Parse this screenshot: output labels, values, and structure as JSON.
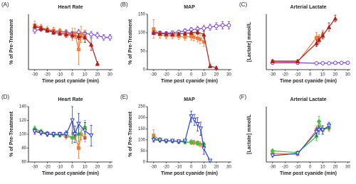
{
  "chart_data": [
    {
      "type": "line",
      "label": "(A)",
      "title": "Heart Rate",
      "xlabel": "Time post cyanide (min)",
      "ylabel": "% of Pre-Treatment",
      "xlim": [
        -35,
        32
      ],
      "xticks": [
        -30,
        -20,
        -10,
        0,
        10,
        20,
        30
      ],
      "ylim": [
        60,
        115
      ],
      "series": [
        {
          "color": "#7b3fd6",
          "marker": "circle",
          "x": [
            -30,
            -25,
            -20,
            -15,
            -10,
            -5,
            0,
            5,
            10,
            15,
            20,
            25,
            30
          ],
          "values": [
            99,
            100,
            99,
            98,
            98,
            97,
            96,
            97,
            96,
            95,
            94,
            92,
            92
          ],
          "errors": [
            3,
            2,
            2,
            2,
            2,
            2,
            2,
            3,
            3,
            3,
            3,
            3,
            3
          ]
        },
        {
          "color": "#f07a3a",
          "marker": "square",
          "x": [
            -30,
            -25,
            -20,
            -15,
            -10,
            -5,
            0,
            2,
            5,
            7,
            10
          ],
          "values": [
            104,
            102,
            100,
            99,
            98,
            96,
            95,
            96,
            80,
            95,
            93
          ],
          "errors": [
            4,
            3,
            3,
            3,
            3,
            4,
            6,
            5,
            15,
            8,
            6
          ]
        },
        {
          "color": "#b0201c",
          "marker": "triangle",
          "x": [
            -30,
            -25,
            -20,
            -15,
            -10,
            -5,
            0,
            5,
            10,
            15,
            20
          ],
          "values": [
            103,
            101,
            99,
            97,
            96,
            95,
            94,
            93,
            92,
            85,
            66
          ],
          "errors": [
            2,
            2,
            2,
            2,
            2,
            3,
            3,
            3,
            5,
            6,
            2
          ]
        }
      ]
    },
    {
      "type": "line",
      "label": "(B)",
      "title": "MAP",
      "xlabel": "Time post cyanide (min)",
      "ylabel": "% of Pre-Treatment",
      "xlim": [
        -35,
        32
      ],
      "xticks": [
        -30,
        -20,
        -10,
        0,
        10,
        20,
        30
      ],
      "ylim": [
        0,
        150
      ],
      "yticks": [
        0,
        50,
        100,
        150
      ],
      "series": [
        {
          "color": "#7b3fd6",
          "marker": "circle",
          "x": [
            -30,
            -25,
            -20,
            -15,
            -10,
            -5,
            0,
            5,
            10,
            15,
            20,
            25,
            30
          ],
          "values": [
            100,
            100,
            98,
            100,
            102,
            105,
            108,
            110,
            112,
            115,
            118,
            120,
            120
          ],
          "errors": [
            5,
            5,
            5,
            5,
            5,
            6,
            6,
            7,
            8,
            8,
            9,
            10,
            10
          ]
        },
        {
          "color": "#f07a3a",
          "marker": "square",
          "x": [
            -30,
            -25,
            -20,
            -15,
            -10,
            -5,
            0,
            2,
            5,
            7,
            10
          ],
          "values": [
            110,
            95,
            92,
            92,
            90,
            88,
            90,
            88,
            85,
            82,
            75
          ],
          "errors": [
            25,
            10,
            8,
            8,
            8,
            8,
            10,
            10,
            10,
            12,
            12
          ]
        },
        {
          "color": "#b0201c",
          "marker": "triangle",
          "x": [
            -30,
            -25,
            -20,
            -15,
            -10,
            -5,
            0,
            5,
            10,
            15,
            20
          ],
          "values": [
            100,
            98,
            97,
            96,
            97,
            98,
            100,
            102,
            95,
            10,
            5
          ],
          "errors": [
            5,
            4,
            4,
            4,
            4,
            4,
            5,
            6,
            10,
            5,
            3
          ]
        }
      ]
    },
    {
      "type": "line",
      "label": "(C)",
      "title": "Arterial Lactate",
      "xlabel": "Time post cyanide (min)",
      "ylabel": "[Lactate] mmol/L",
      "xlim": [
        -35,
        32
      ],
      "xticks": [
        -30,
        -20,
        -10,
        0,
        10,
        20,
        30
      ],
      "ylim": [
        0,
        13
      ],
      "series": [
        {
          "color": "#7b3fd6",
          "marker": "circle",
          "x": [
            -30,
            -10,
            5,
            10,
            15,
            20,
            25,
            30
          ],
          "values": [
            1.6,
            1.6,
            1.5,
            1.5,
            1.5,
            1.6,
            1.6,
            1.6
          ],
          "errors": [
            0.2,
            0.2,
            0.2,
            0.2,
            0.2,
            0.2,
            0.2,
            0.2
          ]
        },
        {
          "color": "#f07a3a",
          "marker": "square",
          "x": [
            -30,
            -10,
            5,
            7,
            10
          ],
          "values": [
            1.9,
            1.8,
            7.5,
            7.2,
            8.2
          ],
          "errors": [
            0.3,
            0.3,
            1.2,
            1,
            1
          ]
        },
        {
          "color": "#b0201c",
          "marker": "triangle",
          "x": [
            -30,
            -10,
            5,
            7,
            10,
            15,
            20
          ],
          "values": [
            2,
            2,
            6.2,
            7,
            8,
            10,
            12
          ],
          "errors": [
            0.3,
            0.3,
            0.8,
            0.8,
            0.8,
            1,
            0.8
          ]
        }
      ]
    },
    {
      "type": "line",
      "label": "(D)",
      "title": "Heart Rate",
      "xlabel": "Time post cyanide (min)",
      "ylabel": "% of Pre-Treatment",
      "xlim": [
        -35,
        32
      ],
      "xticks": [
        -30,
        -20,
        -10,
        0,
        10,
        20,
        30
      ],
      "ylim": [
        60,
        140
      ],
      "yticks": [
        60,
        80,
        100,
        120,
        140
      ],
      "series": [
        {
          "color": "#f07a3a",
          "marker": "square",
          "x": [
            -30,
            -25,
            -20,
            -15,
            -10,
            -5,
            0,
            2,
            5,
            7,
            10
          ],
          "values": [
            105,
            103,
            101,
            100,
            99,
            97,
            95,
            98,
            80,
            100,
            95
          ],
          "errors": [
            4,
            3,
            3,
            3,
            3,
            4,
            6,
            5,
            15,
            8,
            6
          ]
        },
        {
          "color": "#3cc23c",
          "marker": "diamond",
          "x": [
            -30,
            -25,
            -20,
            -15,
            -10,
            -5,
            0,
            5,
            10
          ],
          "values": [
            108,
            104,
            101,
            99,
            99,
            100,
            95,
            100,
            110
          ],
          "errors": [
            4,
            3,
            3,
            3,
            3,
            4,
            8,
            10,
            10
          ]
        },
        {
          "color": "#2a3fd0",
          "marker": "tri-down",
          "x": [
            -30,
            -25,
            -20,
            -15,
            -10,
            -5,
            0,
            2,
            5,
            10,
            15
          ],
          "values": [
            104,
            102,
            100,
            100,
            100,
            100,
            120,
            100,
            115,
            105,
            98
          ],
          "errors": [
            4,
            3,
            3,
            3,
            3,
            5,
            20,
            12,
            15,
            12,
            15
          ]
        }
      ]
    },
    {
      "type": "line",
      "label": "(E)",
      "title": "MAP",
      "xlabel": "Time post cyanide (min)",
      "ylabel": "% of Pre-Treatment",
      "xlim": [
        -35,
        32
      ],
      "xticks": [
        -30,
        -20,
        -10,
        0,
        10,
        20,
        30
      ],
      "ylim": [
        0,
        250
      ],
      "yticks": [
        0,
        50,
        100,
        150,
        200,
        250
      ],
      "series": [
        {
          "color": "#f07a3a",
          "marker": "square",
          "x": [
            -30,
            -25,
            -20,
            -15,
            -10,
            -5,
            0,
            2,
            5,
            7,
            10
          ],
          "values": [
            120,
            100,
            95,
            95,
            92,
            90,
            90,
            88,
            85,
            80,
            72
          ],
          "errors": [
            25,
            10,
            8,
            8,
            8,
            8,
            10,
            10,
            10,
            12,
            12
          ]
        },
        {
          "color": "#3cc23c",
          "marker": "diamond",
          "x": [
            -30,
            -25,
            -20,
            -15,
            -10,
            -5,
            0,
            5,
            10
          ],
          "values": [
            105,
            100,
            95,
            95,
            92,
            90,
            88,
            85,
            80
          ],
          "errors": [
            10,
            8,
            8,
            8,
            8,
            8,
            8,
            10,
            10
          ]
        },
        {
          "color": "#2a3fd0",
          "marker": "tri-down",
          "x": [
            -30,
            -25,
            -20,
            -15,
            -10,
            -5,
            0,
            2.5,
            5,
            7.5,
            10,
            15
          ],
          "values": [
            100,
            98,
            95,
            95,
            92,
            95,
            205,
            190,
            170,
            150,
            60,
            5
          ],
          "errors": [
            10,
            8,
            8,
            8,
            8,
            8,
            25,
            25,
            30,
            30,
            25,
            5
          ]
        }
      ]
    },
    {
      "type": "line",
      "label": "(F)",
      "title": "Arterial Lactate",
      "xlabel": "Time post cyanide (min)",
      "ylabel": "[Lactate] mmol/L",
      "xlim": [
        -35,
        32
      ],
      "xticks": [
        -30,
        -20,
        -10,
        0,
        10,
        20,
        30
      ],
      "ylim": [
        0,
        13
      ],
      "series": [
        {
          "color": "#f07a3a",
          "marker": "square",
          "x": [
            -30,
            -10,
            5,
            7,
            10,
            15
          ],
          "values": [
            2,
            1.8,
            7.5,
            8,
            7.5,
            8
          ],
          "errors": [
            0.3,
            0.3,
            1,
            1,
            1,
            0.8
          ]
        },
        {
          "color": "#3cc23c",
          "marker": "diamond",
          "x": [
            -30,
            -10,
            5,
            7,
            10,
            15
          ],
          "values": [
            2.6,
            2.2,
            6,
            9.5,
            7.5,
            8.2
          ],
          "errors": [
            0.3,
            0.3,
            1,
            1.2,
            1,
            0.8
          ]
        },
        {
          "color": "#2a3fd0",
          "marker": "tri-down",
          "x": [
            -30,
            -10,
            5,
            7,
            10,
            15
          ],
          "values": [
            1.5,
            2,
            7,
            7.5,
            7.5,
            8.5
          ],
          "errors": [
            0.3,
            0.3,
            1,
            1,
            1,
            0.8
          ]
        }
      ]
    }
  ]
}
